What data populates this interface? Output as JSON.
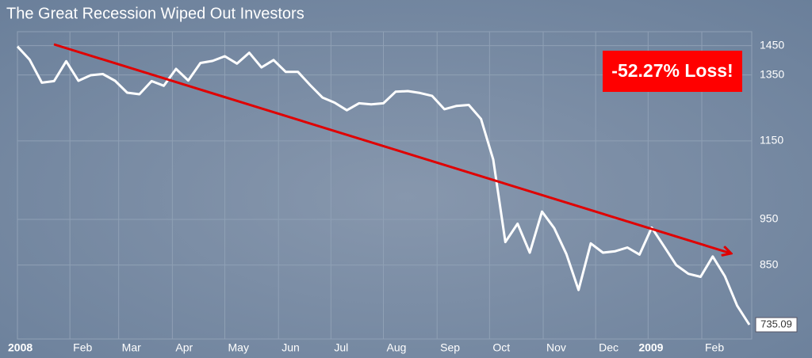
{
  "chart_data": {
    "type": "line",
    "title": "The Great Recession Wiped Out Investors",
    "annotation": "-52.27% Loss!",
    "log_scale": true,
    "grid": true,
    "color": "#ffffff",
    "ylim": [
      710,
      1500
    ],
    "yticks": [
      850,
      950,
      1150,
      1350,
      1450
    ],
    "xlim": [
      0,
      60
    ],
    "xticks": [
      {
        "value": 0,
        "label": "2008"
      },
      {
        "value": 4.3,
        "label": "Feb"
      },
      {
        "value": 8.3,
        "label": "Mar"
      },
      {
        "value": 12.7,
        "label": "Apr"
      },
      {
        "value": 17,
        "label": "May"
      },
      {
        "value": 21.4,
        "label": "Jun"
      },
      {
        "value": 25.7,
        "label": "Jul"
      },
      {
        "value": 30,
        "label": "Aug"
      },
      {
        "value": 34.4,
        "label": "Sep"
      },
      {
        "value": 38.7,
        "label": "Oct"
      },
      {
        "value": 43.1,
        "label": "Nov"
      },
      {
        "value": 47.4,
        "label": "Dec"
      },
      {
        "value": 51.7,
        "label": "2009"
      },
      {
        "value": 56.1,
        "label": "Feb"
      }
    ],
    "values": [
      1447,
      1401,
      1325,
      1330,
      1396,
      1331,
      1349,
      1353,
      1331,
      1293,
      1288,
      1330,
      1315,
      1370,
      1332,
      1390,
      1397,
      1413,
      1388,
      1425,
      1375,
      1400,
      1360,
      1360,
      1317,
      1278,
      1262,
      1239,
      1260,
      1257,
      1260,
      1296,
      1298,
      1292,
      1283,
      1242,
      1252,
      1255,
      1213,
      1099,
      899,
      940,
      876,
      968,
      930,
      873,
      800,
      896,
      876,
      879,
      887,
      872,
      931,
      890,
      850,
      832,
      826,
      868,
      827,
      770,
      735.09
    ]
  }
}
